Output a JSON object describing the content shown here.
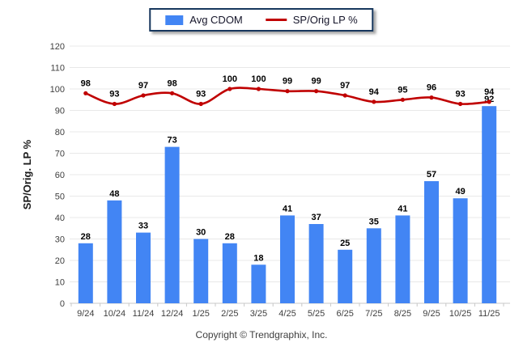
{
  "legend": {
    "items": [
      {
        "label": "Avg CDOM"
      },
      {
        "label": "SP/Orig LP %"
      }
    ]
  },
  "chart_data": {
    "type": "combo (bar + line)",
    "title": "",
    "categories": [
      "9/24",
      "10/24",
      "11/24",
      "12/24",
      "1/25",
      "2/25",
      "3/25",
      "4/25",
      "5/25",
      "6/25",
      "7/25",
      "8/25",
      "9/25",
      "10/25",
      "11/25"
    ],
    "series": [
      {
        "name": "Avg CDOM",
        "type": "bar",
        "color": "#4285F4",
        "values": [
          28,
          48,
          33,
          73,
          30,
          28,
          18,
          41,
          37,
          25,
          35,
          41,
          57,
          49,
          92
        ]
      },
      {
        "name": "SP/Orig LP %",
        "type": "line",
        "color": "#C00000",
        "values": [
          98,
          93,
          97,
          98,
          93,
          100,
          100,
          99,
          99,
          97,
          94,
          95,
          96,
          93,
          94
        ]
      }
    ],
    "xlabel": "",
    "ylabel": "SP/Orig. LP %",
    "ylim": [
      0,
      120
    ],
    "ytick_step": 10,
    "grid": true,
    "legend_position": "top-center",
    "data_labels": true
  },
  "colors": {
    "bar": "#4285F4",
    "line": "#C00000",
    "legend_border": "#17375D",
    "grid": "#E8E8E8",
    "baseline": "#C8C8C8",
    "axis_text": "#404040",
    "data_label_text": "#000000"
  },
  "footer": {
    "copyright": "Copyright © Trendgraphix, Inc."
  }
}
